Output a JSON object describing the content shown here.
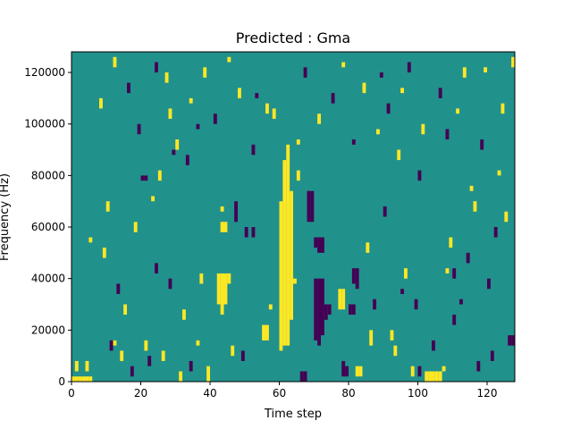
{
  "chart_data": {
    "type": "heatmap",
    "title": "Predicted : Gma",
    "xlabel": "Time step",
    "ylabel": "Frequency (Hz)",
    "xlim": [
      0,
      128
    ],
    "ylim": [
      0,
      128000
    ],
    "xticks": [
      0,
      20,
      40,
      60,
      80,
      100,
      120
    ],
    "xtick_labels": [
      "0",
      "20",
      "40",
      "60",
      "80",
      "100",
      "120"
    ],
    "yticks": [
      0,
      20000,
      40000,
      60000,
      80000,
      100000,
      120000
    ],
    "ytick_labels": [
      "0",
      "20000",
      "40000",
      "60000",
      "80000",
      "100000",
      "120000"
    ],
    "colormap": "viridis",
    "colors": {
      "background": "#21918c",
      "high": "#fde725",
      "low": "#440154"
    },
    "n_time_steps": 128,
    "n_freq_bins": 64,
    "bin_hz": 2000,
    "high_cells": [
      {
        "t": 0,
        "f0": 0,
        "f1": 2000
      },
      {
        "t": 1,
        "f0": 0,
        "f1": 2000
      },
      {
        "t": 2,
        "f0": 0,
        "f1": 2000
      },
      {
        "t": 3,
        "f0": 0,
        "f1": 2000
      },
      {
        "t": 4,
        "f0": 0,
        "f1": 2000
      },
      {
        "t": 5,
        "f0": 0,
        "f1": 2000
      },
      {
        "t": 1,
        "f0": 4000,
        "f1": 8000
      },
      {
        "t": 4,
        "f0": 4000,
        "f1": 8000
      },
      {
        "t": 12,
        "f0": 14000,
        "f1": 16000
      },
      {
        "t": 21,
        "f0": 12000,
        "f1": 16000
      },
      {
        "t": 26,
        "f0": 8000,
        "f1": 12000
      },
      {
        "t": 31,
        "f0": 0,
        "f1": 4000
      },
      {
        "t": 36,
        "f0": 14000,
        "f1": 16000
      },
      {
        "t": 39,
        "f0": 0,
        "f1": 6000
      },
      {
        "t": 37,
        "f0": 38000,
        "f1": 42000
      },
      {
        "t": 42,
        "f0": 30000,
        "f1": 42000
      },
      {
        "t": 43,
        "f0": 26000,
        "f1": 42000
      },
      {
        "t": 44,
        "f0": 30000,
        "f1": 42000
      },
      {
        "t": 45,
        "f0": 38000,
        "f1": 42000
      },
      {
        "t": 43,
        "f0": 66000,
        "f1": 68000
      },
      {
        "t": 43,
        "f0": 58000,
        "f1": 62000
      },
      {
        "t": 44,
        "f0": 58000,
        "f1": 62000
      },
      {
        "t": 46,
        "f0": 10000,
        "f1": 14000
      },
      {
        "t": 55,
        "f0": 16000,
        "f1": 22000
      },
      {
        "t": 56,
        "f0": 16000,
        "f1": 22000
      },
      {
        "t": 57,
        "f0": 28000,
        "f1": 30000
      },
      {
        "t": 60,
        "f0": 12000,
        "f1": 70000
      },
      {
        "t": 61,
        "f0": 14000,
        "f1": 86000
      },
      {
        "t": 62,
        "f0": 14000,
        "f1": 92000
      },
      {
        "t": 63,
        "f0": 24000,
        "f1": 74000
      },
      {
        "t": 64,
        "f0": 38000,
        "f1": 40000
      },
      {
        "t": 65,
        "f0": 78000,
        "f1": 82000
      },
      {
        "t": 65,
        "f0": 92000,
        "f1": 94000
      },
      {
        "t": 77,
        "f0": 28000,
        "f1": 36000
      },
      {
        "t": 78,
        "f0": 28000,
        "f1": 36000
      },
      {
        "t": 82,
        "f0": 2000,
        "f1": 6000
      },
      {
        "t": 83,
        "f0": 2000,
        "f1": 6000
      },
      {
        "t": 86,
        "f0": 14000,
        "f1": 20000
      },
      {
        "t": 92,
        "f0": 16000,
        "f1": 20000
      },
      {
        "t": 98,
        "f0": 2000,
        "f1": 6000
      },
      {
        "t": 102,
        "f0": 0,
        "f1": 4000
      },
      {
        "t": 103,
        "f0": 0,
        "f1": 4000
      },
      {
        "t": 104,
        "f0": 0,
        "f1": 4000
      },
      {
        "t": 105,
        "f0": 0,
        "f1": 4000
      },
      {
        "t": 106,
        "f0": 0,
        "f1": 4000
      },
      {
        "t": 107,
        "f0": 4000,
        "f1": 6000
      },
      {
        "t": 108,
        "f0": 42000,
        "f1": 44000
      },
      {
        "t": 111,
        "f0": 104000,
        "f1": 106000
      },
      {
        "t": 115,
        "f0": 74000,
        "f1": 76000
      },
      {
        "t": 119,
        "f0": 120000,
        "f1": 122000
      },
      {
        "t": 123,
        "f0": 80000,
        "f1": 82000
      },
      {
        "t": 127,
        "f0": 122000,
        "f1": 126000
      },
      {
        "t": 5,
        "f0": 54000,
        "f1": 56000
      },
      {
        "t": 10,
        "f0": 66000,
        "f1": 70000
      },
      {
        "t": 18,
        "f0": 58000,
        "f1": 62000
      },
      {
        "t": 23,
        "f0": 70000,
        "f1": 72000
      },
      {
        "t": 25,
        "f0": 78000,
        "f1": 82000
      },
      {
        "t": 28,
        "f0": 102000,
        "f1": 106000
      },
      {
        "t": 34,
        "f0": 108000,
        "f1": 110000
      },
      {
        "t": 45,
        "f0": 124000,
        "f1": 126000
      },
      {
        "t": 56,
        "f0": 104000,
        "f1": 108000
      },
      {
        "t": 78,
        "f0": 122000,
        "f1": 124000
      },
      {
        "t": 88,
        "f0": 96000,
        "f1": 98000
      },
      {
        "t": 95,
        "f0": 112000,
        "f1": 114000
      }
    ],
    "low_cells": [
      {
        "t": 17,
        "f0": 2000,
        "f1": 6000
      },
      {
        "t": 22,
        "f0": 6000,
        "f1": 10000
      },
      {
        "t": 34,
        "f0": 4000,
        "f1": 8000
      },
      {
        "t": 49,
        "f0": 8000,
        "f1": 12000
      },
      {
        "t": 50,
        "f0": 56000,
        "f1": 60000
      },
      {
        "t": 52,
        "f0": 56000,
        "f1": 60000
      },
      {
        "t": 47,
        "f0": 62000,
        "f1": 70000
      },
      {
        "t": 66,
        "f0": 0,
        "f1": 4000
      },
      {
        "t": 67,
        "f0": 0,
        "f1": 4000
      },
      {
        "t": 68,
        "f0": 62000,
        "f1": 74000
      },
      {
        "t": 69,
        "f0": 62000,
        "f1": 74000
      },
      {
        "t": 70,
        "f0": 52000,
        "f1": 56000
      },
      {
        "t": 71,
        "f0": 50000,
        "f1": 56000
      },
      {
        "t": 72,
        "f0": 50000,
        "f1": 56000
      },
      {
        "t": 70,
        "f0": 16000,
        "f1": 40000
      },
      {
        "t": 71,
        "f0": 14000,
        "f1": 40000
      },
      {
        "t": 72,
        "f0": 18000,
        "f1": 40000
      },
      {
        "t": 73,
        "f0": 24000,
        "f1": 30000
      },
      {
        "t": 74,
        "f0": 26000,
        "f1": 30000
      },
      {
        "t": 81,
        "f0": 38000,
        "f1": 44000
      },
      {
        "t": 82,
        "f0": 36000,
        "f1": 44000
      },
      {
        "t": 78,
        "f0": 2000,
        "f1": 8000
      },
      {
        "t": 79,
        "f0": 2000,
        "f1": 6000
      },
      {
        "t": 80,
        "f0": 26000,
        "f1": 30000
      },
      {
        "t": 81,
        "f0": 26000,
        "f1": 30000
      },
      {
        "t": 87,
        "f0": 28000,
        "f1": 32000
      },
      {
        "t": 95,
        "f0": 34000,
        "f1": 36000
      },
      {
        "t": 100,
        "f0": 2000,
        "f1": 6000
      },
      {
        "t": 104,
        "f0": 12000,
        "f1": 16000
      },
      {
        "t": 110,
        "f0": 40000,
        "f1": 44000
      },
      {
        "t": 117,
        "f0": 4000,
        "f1": 8000
      },
      {
        "t": 122,
        "f0": 56000,
        "f1": 60000
      },
      {
        "t": 126,
        "f0": 14000,
        "f1": 18000
      },
      {
        "t": 127,
        "f0": 14000,
        "f1": 18000
      },
      {
        "t": 20,
        "f0": 78000,
        "f1": 80000
      },
      {
        "t": 21,
        "f0": 78000,
        "f1": 80000
      },
      {
        "t": 24,
        "f0": 120000,
        "f1": 124000
      },
      {
        "t": 29,
        "f0": 88000,
        "f1": 90000
      },
      {
        "t": 36,
        "f0": 98000,
        "f1": 100000
      },
      {
        "t": 53,
        "f0": 110000,
        "f1": 112000
      },
      {
        "t": 81,
        "f0": 92000,
        "f1": 94000
      },
      {
        "t": 89,
        "f0": 118000,
        "f1": 120000
      },
      {
        "t": 100,
        "f0": 78000,
        "f1": 82000
      },
      {
        "t": 108,
        "f0": 94000,
        "f1": 98000
      },
      {
        "t": 112,
        "f0": 30000,
        "f1": 32000
      }
    ],
    "scatter_cells": [
      {
        "t": 8,
        "f": 106000,
        "v": "high"
      },
      {
        "t": 12,
        "f": 122000,
        "v": "high"
      },
      {
        "t": 16,
        "f": 112000,
        "v": "low"
      },
      {
        "t": 19,
        "f": 96000,
        "v": "low"
      },
      {
        "t": 27,
        "f": 116000,
        "v": "high"
      },
      {
        "t": 30,
        "f": 90000,
        "v": "high"
      },
      {
        "t": 33,
        "f": 84000,
        "v": "low"
      },
      {
        "t": 38,
        "f": 118000,
        "v": "high"
      },
      {
        "t": 41,
        "f": 100000,
        "v": "low"
      },
      {
        "t": 48,
        "f": 110000,
        "v": "high"
      },
      {
        "t": 52,
        "f": 88000,
        "v": "low"
      },
      {
        "t": 58,
        "f": 102000,
        "v": "high"
      },
      {
        "t": 67,
        "f": 118000,
        "v": "low"
      },
      {
        "t": 71,
        "f": 100000,
        "v": "high"
      },
      {
        "t": 75,
        "f": 108000,
        "v": "low"
      },
      {
        "t": 84,
        "f": 112000,
        "v": "high"
      },
      {
        "t": 91,
        "f": 104000,
        "v": "low"
      },
      {
        "t": 94,
        "f": 86000,
        "v": "high"
      },
      {
        "t": 97,
        "f": 120000,
        "v": "low"
      },
      {
        "t": 101,
        "f": 96000,
        "v": "high"
      },
      {
        "t": 106,
        "f": 110000,
        "v": "low"
      },
      {
        "t": 113,
        "f": 118000,
        "v": "high"
      },
      {
        "t": 118,
        "f": 90000,
        "v": "low"
      },
      {
        "t": 124,
        "f": 104000,
        "v": "high"
      },
      {
        "t": 9,
        "f": 48000,
        "v": "high"
      },
      {
        "t": 13,
        "f": 34000,
        "v": "low"
      },
      {
        "t": 15,
        "f": 26000,
        "v": "high"
      },
      {
        "t": 24,
        "f": 42000,
        "v": "low"
      },
      {
        "t": 28,
        "f": 36000,
        "v": "low"
      },
      {
        "t": 32,
        "f": 24000,
        "v": "high"
      },
      {
        "t": 85,
        "f": 50000,
        "v": "high"
      },
      {
        "t": 90,
        "f": 64000,
        "v": "low"
      },
      {
        "t": 96,
        "f": 40000,
        "v": "high"
      },
      {
        "t": 99,
        "f": 28000,
        "v": "low"
      },
      {
        "t": 109,
        "f": 52000,
        "v": "high"
      },
      {
        "t": 114,
        "f": 46000,
        "v": "low"
      },
      {
        "t": 116,
        "f": 66000,
        "v": "high"
      },
      {
        "t": 120,
        "f": 36000,
        "v": "low"
      },
      {
        "t": 125,
        "f": 62000,
        "v": "high"
      },
      {
        "t": 11,
        "f": 12000,
        "v": "low"
      },
      {
        "t": 14,
        "f": 8000,
        "v": "high"
      },
      {
        "t": 93,
        "f": 10000,
        "v": "high"
      },
      {
        "t": 110,
        "f": 22000,
        "v": "low"
      },
      {
        "t": 121,
        "f": 8000,
        "v": "low"
      }
    ]
  }
}
